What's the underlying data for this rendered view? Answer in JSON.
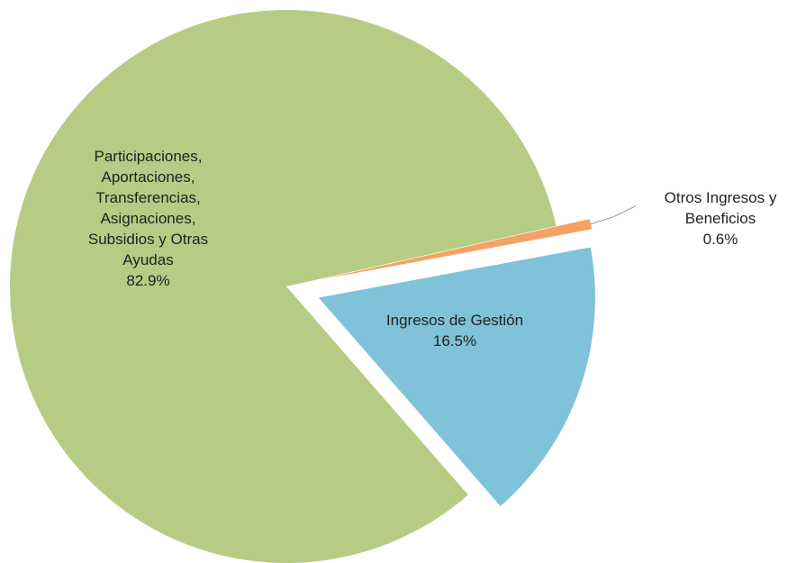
{
  "chart_data": {
    "type": "pie",
    "categories": [
      "Participaciones, Aportaciones, Transferencias, Asignaciones, Subsidios y Otras Ayudas",
      "Otros Ingresos y Beneficios",
      "Ingresos de Gestión"
    ],
    "values": [
      82.9,
      0.6,
      16.5
    ],
    "value_labels": [
      "82.9%",
      "0.6%",
      "16.5%"
    ],
    "colors": [
      "#b6cc84",
      "#f4a263",
      "#7fc2d9"
    ],
    "exploded": [
      false,
      true,
      true
    ]
  }
}
